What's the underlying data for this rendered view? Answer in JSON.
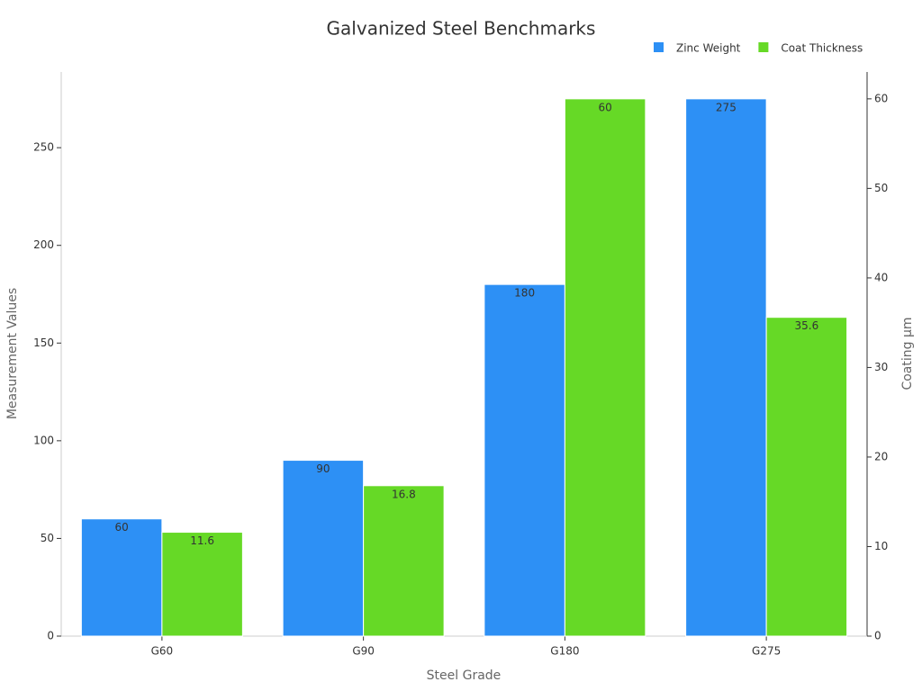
{
  "chart_data": {
    "type": "bar",
    "title": "Galvanized Steel Benchmarks",
    "x_label": "Steel Grade",
    "y_label": "Measurement Values",
    "y2_label": "Coating µm",
    "categories": [
      "G60",
      "G90",
      "G180",
      "G275"
    ],
    "series": [
      {
        "name": "Zinc Weight",
        "color": "#2d90f5",
        "values": [
          60,
          90,
          180,
          275
        ]
      },
      {
        "name": "Coat Thickness",
        "color": "#66d926",
        "values": [
          11.6,
          16.8,
          60,
          35.6
        ],
        "axis": "y2"
      }
    ],
    "ylim": [
      0,
      288.75
    ],
    "yticks": [
      0,
      50,
      100,
      150,
      200,
      250
    ],
    "y2lim": [
      0,
      63
    ],
    "y2ticks": [
      0,
      10,
      20,
      30,
      40,
      50,
      60
    ],
    "grid": false,
    "legend": "top-right"
  }
}
